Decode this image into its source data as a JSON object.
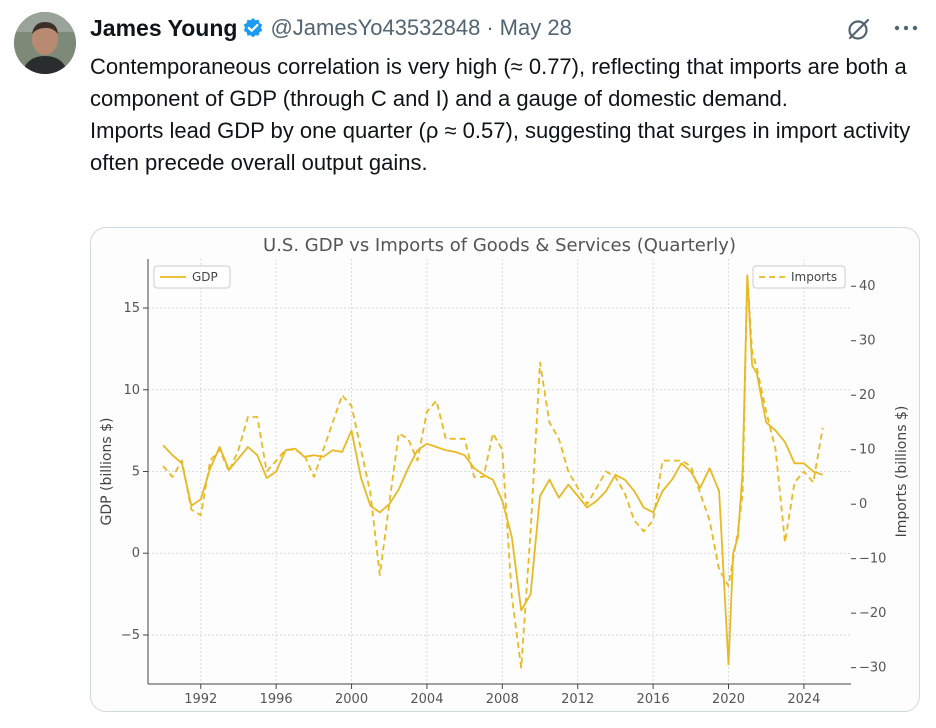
{
  "tweet": {
    "author_name": "James Young",
    "handle": "@JamesYo43532848",
    "separator": "·",
    "date": "May 28",
    "verified_icon": "verified-badge-icon",
    "accent_color": "#1d9bf0",
    "paragraph_1": "Contemporaneous correlation is very high (≈ 0.77), reflecting that imports are both a component of GDP (through C and I) and a gauge of domestic demand.",
    "paragraph_2": "Imports lead GDP by one quarter (ρ ≈ 0.57), suggesting that surges in import activity often precede overall output gains."
  },
  "chart_data": {
    "type": "line",
    "title": "U.S. GDP vs Imports of Goods & Services (Quarterly)",
    "xlabel": "",
    "ylabel": "GDP (billions $)",
    "y2label": "Imports (billions $)",
    "xlim": [
      1989.2,
      2026.5
    ],
    "ylim": [
      -8,
      18
    ],
    "y2lim": [
      -33,
      45
    ],
    "xticks": [
      1992,
      1996,
      2000,
      2004,
      2008,
      2012,
      2016,
      2020,
      2024
    ],
    "yticks": [
      -5,
      0,
      5,
      10,
      15
    ],
    "y2ticks": [
      -30,
      -20,
      -10,
      0,
      10,
      20,
      30,
      40
    ],
    "xtick_labels": [
      "1992",
      "1996",
      "2000",
      "2004",
      "2008",
      "2012",
      "2016",
      "2020",
      "2024"
    ],
    "ytick_labels": [
      "−5",
      "0",
      "5",
      "10",
      "15"
    ],
    "y2tick_labels": [
      "−30",
      "−20",
      "−10",
      "0",
      "10",
      "20",
      "30",
      "40"
    ],
    "grid": true,
    "color": "#e8b923",
    "series": [
      {
        "name": "GDP",
        "axis": "left",
        "style": "solid",
        "legend_position": "top-left",
        "x": [
          1990.0,
          1990.5,
          1991.0,
          1991.5,
          1992.0,
          1992.5,
          1993.0,
          1993.5,
          1994.0,
          1994.5,
          1995.0,
          1995.5,
          1996.0,
          1996.5,
          1997.0,
          1997.5,
          1998.0,
          1998.5,
          1999.0,
          1999.5,
          2000.0,
          2000.5,
          2001.0,
          2001.5,
          2002.0,
          2002.5,
          2003.0,
          2003.5,
          2004.0,
          2004.5,
          2005.0,
          2005.5,
          2006.0,
          2006.5,
          2007.0,
          2007.5,
          2008.0,
          2008.5,
          2009.0,
          2009.5,
          2010.0,
          2010.5,
          2011.0,
          2011.5,
          2012.0,
          2012.5,
          2013.0,
          2013.5,
          2014.0,
          2014.5,
          2015.0,
          2015.5,
          2016.0,
          2016.5,
          2017.0,
          2017.5,
          2018.0,
          2018.5,
          2019.0,
          2019.5,
          2020.0,
          2020.25,
          2020.5,
          2020.75,
          2021.0,
          2021.25,
          2021.5,
          2022.0,
          2022.5,
          2023.0,
          2023.5,
          2024.0,
          2024.5,
          2025.0
        ],
        "values": [
          6.6,
          6.0,
          5.5,
          2.9,
          3.3,
          5.2,
          6.5,
          5.1,
          5.8,
          6.5,
          6.0,
          4.6,
          5.0,
          6.3,
          6.4,
          5.9,
          6.0,
          5.9,
          6.3,
          6.2,
          7.5,
          4.6,
          2.9,
          2.5,
          3.0,
          3.9,
          5.2,
          6.3,
          6.7,
          6.5,
          6.3,
          6.2,
          6.0,
          5.2,
          4.8,
          4.5,
          3.2,
          1.0,
          -3.5,
          -2.5,
          3.5,
          4.5,
          3.4,
          4.2,
          3.5,
          2.8,
          3.2,
          3.8,
          4.8,
          4.5,
          3.8,
          2.8,
          2.5,
          3.8,
          4.5,
          5.5,
          5.0,
          4.0,
          5.2,
          3.8,
          -6.8,
          0.0,
          1.0,
          5.0,
          17.0,
          11.5,
          11.0,
          8.0,
          7.5,
          6.8,
          5.5,
          5.5,
          5.0,
          4.8
        ]
      },
      {
        "name": "Imports",
        "axis": "right",
        "style": "dashed",
        "legend_position": "top-right",
        "x": [
          1990.0,
          1990.5,
          1991.0,
          1991.5,
          1992.0,
          1992.5,
          1993.0,
          1993.5,
          1994.0,
          1994.5,
          1995.0,
          1995.5,
          1996.0,
          1996.5,
          1997.0,
          1997.5,
          1998.0,
          1998.5,
          1999.0,
          1999.5,
          2000.0,
          2000.5,
          2001.0,
          2001.5,
          2002.0,
          2002.5,
          2003.0,
          2003.5,
          2004.0,
          2004.5,
          2005.0,
          2005.5,
          2006.0,
          2006.5,
          2007.0,
          2007.5,
          2008.0,
          2008.5,
          2009.0,
          2009.5,
          2010.0,
          2010.5,
          2011.0,
          2011.5,
          2012.0,
          2012.5,
          2013.0,
          2013.5,
          2014.0,
          2014.5,
          2015.0,
          2015.5,
          2016.0,
          2016.5,
          2017.0,
          2017.5,
          2018.0,
          2018.5,
          2019.0,
          2019.5,
          2020.0,
          2020.25,
          2020.5,
          2020.75,
          2021.0,
          2021.25,
          2021.5,
          2022.0,
          2022.5,
          2023.0,
          2023.5,
          2024.0,
          2024.5,
          2025.0
        ],
        "values": [
          7.0,
          5.0,
          8.0,
          -1.0,
          -2.0,
          8.0,
          10.0,
          6.0,
          10.0,
          16.0,
          16.0,
          6.0,
          8.0,
          10.0,
          10.0,
          9.0,
          5.0,
          10.0,
          15.0,
          20.0,
          18.0,
          10.0,
          2.0,
          -13.0,
          0.0,
          13.0,
          12.0,
          8.0,
          17.0,
          19.0,
          12.0,
          12.0,
          12.0,
          5.0,
          5.0,
          13.0,
          10.0,
          -17.0,
          -30.0,
          -5.0,
          26.0,
          15.0,
          12.0,
          6.0,
          3.0,
          0.0,
          3.0,
          6.0,
          5.0,
          2.0,
          -3.0,
          -5.0,
          -3.0,
          8.0,
          8.0,
          8.0,
          7.0,
          2.0,
          -3.0,
          -12.0,
          -15.0,
          -10.0,
          -5.0,
          2.0,
          42.0,
          28.0,
          25.0,
          17.0,
          10.0,
          -7.0,
          4.0,
          6.0,
          4.0,
          14.0
        ]
      }
    ]
  }
}
